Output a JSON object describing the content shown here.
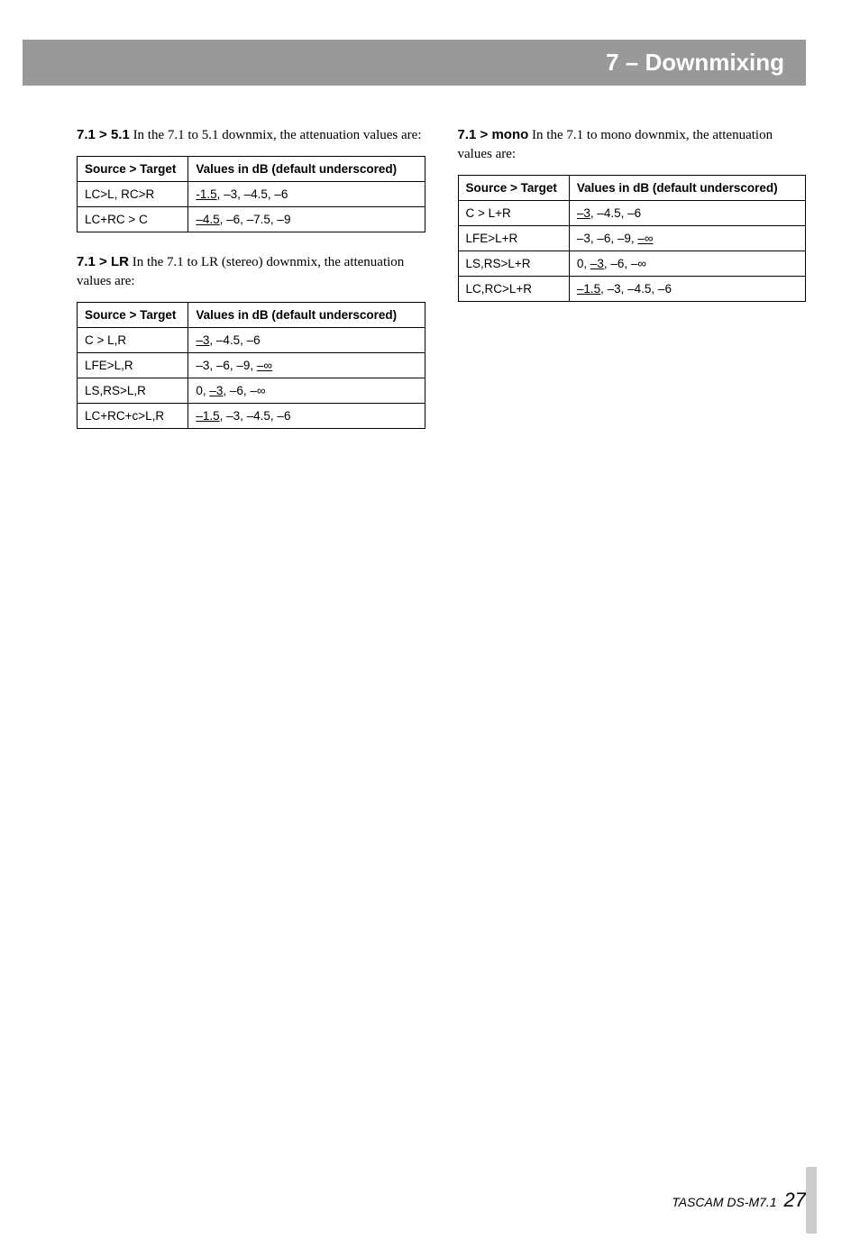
{
  "header": {
    "title": "7 – Downmixing"
  },
  "sections": {
    "s71_51": {
      "lead": "7.1 > 5.1",
      "intro_rest": " In the 7.1 to 5.1 downmix, the attenuation values are:",
      "table": {
        "col1": "Source > Target",
        "col2": "Values in dB (default underscored)",
        "rows": [
          {
            "src": "LC>L, RC>R",
            "vals": [
              {
                "t": "-1.5",
                "u": true
              },
              {
                "t": ", –3, –4.5, –6",
                "u": false
              }
            ]
          },
          {
            "src": "LC+RC > C",
            "vals": [
              {
                "t": "–4.5",
                "u": true
              },
              {
                "t": ", –6, –7.5, –9",
                "u": false
              }
            ]
          }
        ]
      }
    },
    "s71_lr": {
      "lead": "7.1 > LR",
      "intro_rest": " In the 7.1 to LR (stereo) downmix, the attenuation values are:",
      "table": {
        "col1": "Source > Target",
        "col2": "Values in dB (default underscored)",
        "rows": [
          {
            "src": "C > L,R",
            "vals": [
              {
                "t": "–3",
                "u": true
              },
              {
                "t": ", –4.5, –6",
                "u": false
              }
            ]
          },
          {
            "src": "LFE>L,R",
            "vals": [
              {
                "t": "–3, –6, –9, ",
                "u": false
              },
              {
                "t": "–∞",
                "u": true
              }
            ]
          },
          {
            "src": "LS,RS>L,R",
            "vals": [
              {
                "t": "0, ",
                "u": false
              },
              {
                "t": "–3",
                "u": true
              },
              {
                "t": ", –6, –∞",
                "u": false
              }
            ]
          },
          {
            "src": "LC+RC+c>L,R",
            "vals": [
              {
                "t": "–1.5",
                "u": true
              },
              {
                "t": ", –3, –4.5, –6",
                "u": false
              }
            ]
          }
        ]
      }
    },
    "s71_mono": {
      "lead": "7.1 > mono",
      "intro_rest": " In the 7.1 to mono downmix, the attenuation values are:",
      "table": {
        "col1": "Source > Target",
        "col2": "Values in dB (default underscored)",
        "rows": [
          {
            "src": "C > L+R",
            "vals": [
              {
                "t": "–3",
                "u": true
              },
              {
                "t": ", –4.5, –6",
                "u": false
              }
            ]
          },
          {
            "src": "LFE>L+R",
            "vals": [
              {
                "t": "–3, –6, –9, ",
                "u": false
              },
              {
                "t": "–∞",
                "u": true
              }
            ]
          },
          {
            "src": "LS,RS>L+R",
            "vals": [
              {
                "t": "0, ",
                "u": false
              },
              {
                "t": "–3",
                "u": true
              },
              {
                "t": ", –6, –∞",
                "u": false
              }
            ]
          },
          {
            "src": "LC,RC>L+R",
            "vals": [
              {
                "t": "–1.5",
                "u": true
              },
              {
                "t": ", –3, –4.5, –6",
                "u": false
              }
            ]
          }
        ]
      }
    }
  },
  "footer": {
    "product": "TASCAM DS-M7.1",
    "page": "27"
  }
}
